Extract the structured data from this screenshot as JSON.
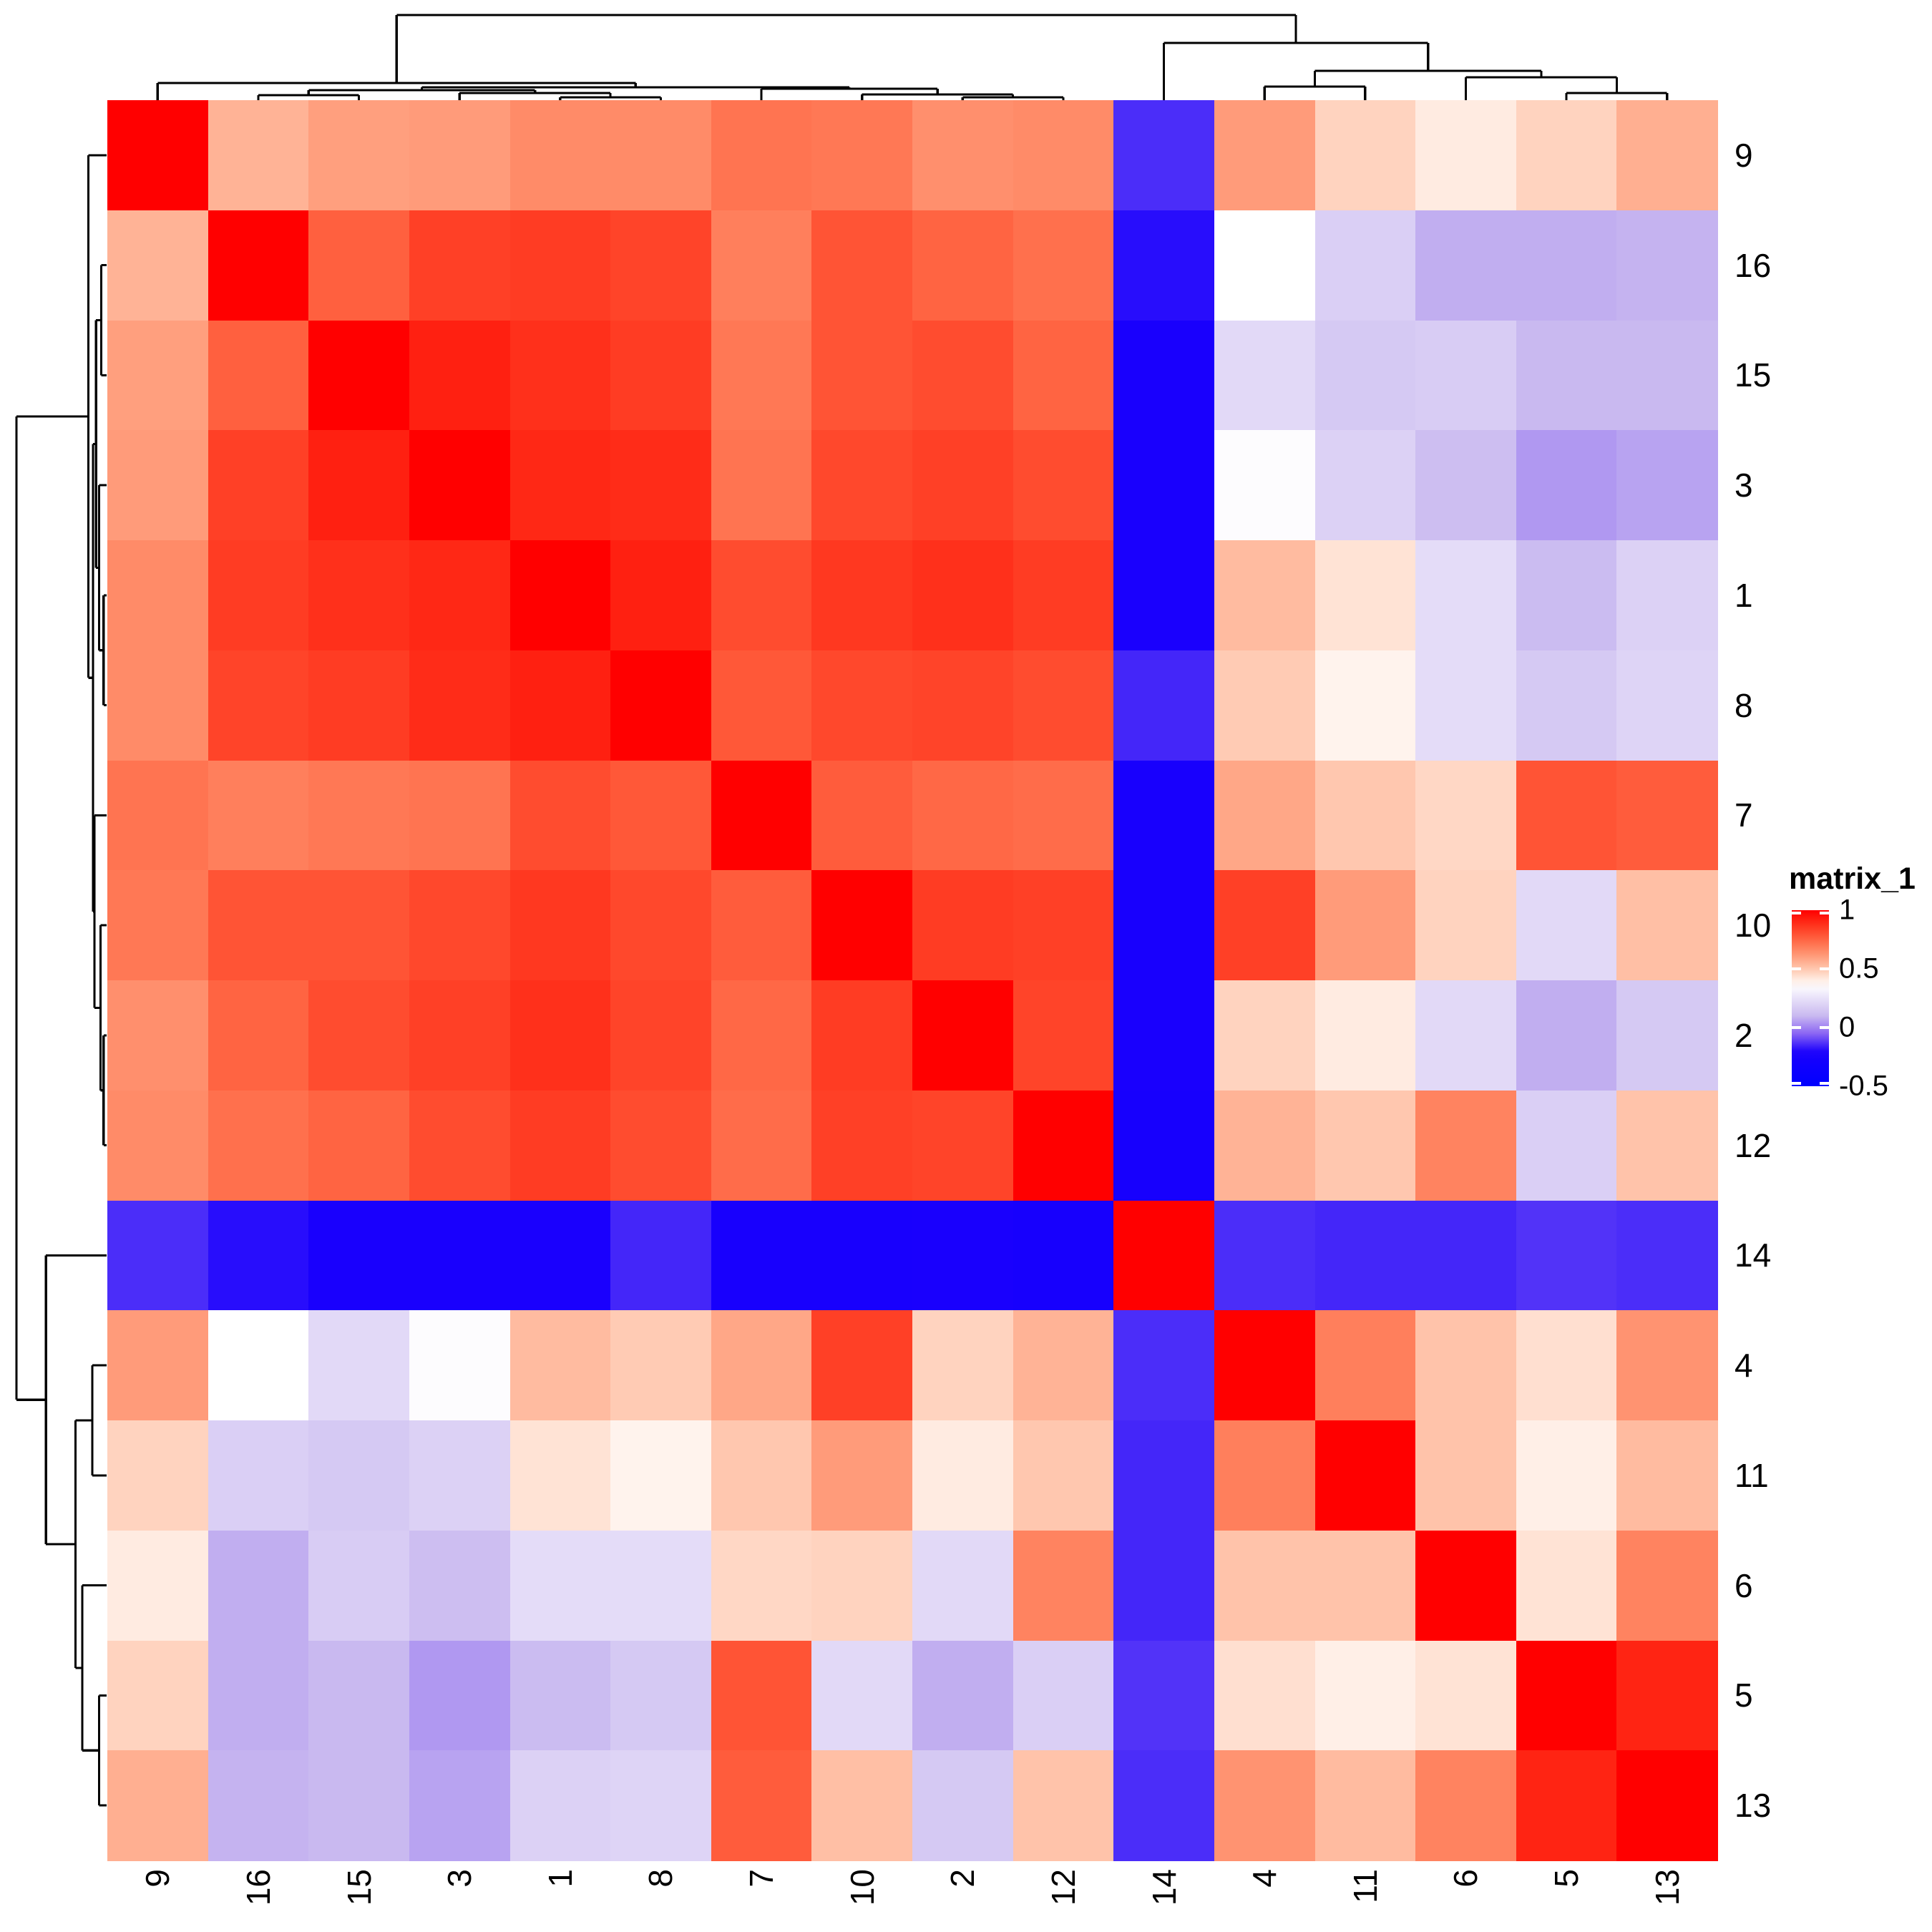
{
  "figure": {
    "background": "#ffffff",
    "text_color": "#000000",
    "dendrogram_color": "#000000"
  },
  "chart_data": {
    "type": "heatmap",
    "title": "matrix_1",
    "subtitle": "",
    "leaf_order": [
      "9",
      "16",
      "15",
      "3",
      "1",
      "8",
      "7",
      "10",
      "2",
      "12",
      "14",
      "4",
      "11",
      "6",
      "5",
      "13"
    ],
    "row_labels": [
      "9",
      "16",
      "15",
      "3",
      "1",
      "8",
      "7",
      "10",
      "2",
      "12",
      "14",
      "4",
      "11",
      "6",
      "5",
      "13"
    ],
    "col_labels": [
      "9",
      "16",
      "15",
      "3",
      "1",
      "8",
      "7",
      "10",
      "2",
      "12",
      "14",
      "4",
      "11",
      "6",
      "5",
      "13"
    ],
    "value_domain": [
      -0.5,
      1
    ],
    "matrix": [
      [
        1.0,
        0.55,
        0.6,
        0.61,
        0.65,
        0.65,
        0.71,
        0.7,
        0.64,
        0.65,
        -0.14,
        0.61,
        0.47,
        0.41,
        0.47,
        0.56
      ],
      [
        0.55,
        1.0,
        0.76,
        0.84,
        0.85,
        0.83,
        0.68,
        0.79,
        0.75,
        0.72,
        -0.19,
        0.36,
        0.18,
        0.08,
        0.08,
        0.09
      ],
      [
        0.6,
        0.76,
        1.0,
        0.92,
        0.88,
        0.85,
        0.7,
        0.79,
        0.81,
        0.75,
        -0.22,
        0.22,
        0.16,
        0.17,
        0.1,
        0.1
      ],
      [
        0.61,
        0.84,
        0.92,
        1.0,
        0.9,
        0.89,
        0.71,
        0.82,
        0.84,
        0.81,
        -0.22,
        0.35,
        0.19,
        0.12,
        0.04,
        0.06
      ],
      [
        0.65,
        0.85,
        0.88,
        0.9,
        1.0,
        0.92,
        0.81,
        0.86,
        0.88,
        0.85,
        -0.21,
        0.53,
        0.43,
        0.23,
        0.11,
        0.19
      ],
      [
        0.65,
        0.83,
        0.85,
        0.89,
        0.92,
        1.0,
        0.78,
        0.82,
        0.83,
        0.81,
        -0.15,
        0.49,
        0.39,
        0.23,
        0.16,
        0.2
      ],
      [
        0.71,
        0.68,
        0.7,
        0.71,
        0.81,
        0.78,
        1.0,
        0.77,
        0.74,
        0.73,
        -0.23,
        0.58,
        0.5,
        0.46,
        0.79,
        0.77
      ],
      [
        0.7,
        0.79,
        0.79,
        0.82,
        0.86,
        0.82,
        0.77,
        1.0,
        0.85,
        0.84,
        -0.23,
        0.84,
        0.61,
        0.47,
        0.22,
        0.52
      ],
      [
        0.64,
        0.75,
        0.81,
        0.84,
        0.88,
        0.83,
        0.74,
        0.85,
        1.0,
        0.83,
        -0.22,
        0.47,
        0.41,
        0.22,
        0.08,
        0.16
      ],
      [
        0.65,
        0.72,
        0.75,
        0.81,
        0.85,
        0.81,
        0.73,
        0.84,
        0.83,
        1.0,
        -0.24,
        0.55,
        0.5,
        0.67,
        0.18,
        0.51
      ],
      [
        -0.14,
        -0.19,
        -0.22,
        -0.22,
        -0.21,
        -0.15,
        -0.23,
        -0.23,
        -0.22,
        -0.24,
        1.0,
        -0.14,
        -0.15,
        -0.15,
        -0.13,
        -0.14
      ],
      [
        0.61,
        0.36,
        0.22,
        0.35,
        0.53,
        0.49,
        0.58,
        0.84,
        0.47,
        0.55,
        -0.14,
        1.0,
        0.68,
        0.51,
        0.44,
        0.63
      ],
      [
        0.47,
        0.18,
        0.16,
        0.19,
        0.43,
        0.39,
        0.5,
        0.61,
        0.41,
        0.5,
        -0.15,
        0.68,
        1.0,
        0.51,
        0.4,
        0.53
      ],
      [
        0.41,
        0.08,
        0.17,
        0.12,
        0.23,
        0.23,
        0.46,
        0.47,
        0.22,
        0.67,
        -0.15,
        0.51,
        0.51,
        1.0,
        0.43,
        0.67
      ],
      [
        0.47,
        0.08,
        0.1,
        0.04,
        0.11,
        0.16,
        0.79,
        0.22,
        0.08,
        0.18,
        -0.13,
        0.44,
        0.4,
        0.43,
        1.0,
        0.91
      ],
      [
        0.56,
        0.09,
        0.1,
        0.06,
        0.19,
        0.2,
        0.77,
        0.52,
        0.16,
        0.51,
        -0.14,
        0.63,
        0.53,
        0.67,
        0.91,
        1.0
      ]
    ],
    "legend": {
      "title": "matrix_1",
      "ticks": [
        {
          "label": "1",
          "value": 1
        },
        {
          "label": "0.5",
          "value": 0.5
        },
        {
          "label": "0",
          "value": 0
        },
        {
          "label": "-0.5",
          "value": -0.5
        }
      ]
    },
    "color_scale": {
      "comment": "piecewise interpolation; red side warm-tinted, blue side passes through violet",
      "white_point": 0.36,
      "red": "#ff0000",
      "blue_side_stops": [
        {
          "v": 0.36,
          "color": "#ffffff"
        },
        {
          "v": 0.1,
          "color": "#c9b9f0"
        },
        {
          "v": -0.05,
          "color": "#8b66f3"
        },
        {
          "v": -0.21,
          "color": "#1a00fd"
        },
        {
          "v": -0.5,
          "color": "#0000ff"
        }
      ]
    },
    "dendrogram": {
      "h": 119,
      "children": [
        {
          "h": 24,
          "children": [
            {
              "leaf": "9"
            },
            {
              "h": 18,
              "children": [
                {
                  "h": 14,
                  "children": [
                    {
                      "h": 7,
                      "children": [
                        {
                          "leaf": "16"
                        },
                        {
                          "leaf": "15"
                        }
                      ]
                    },
                    {
                      "h": 10,
                      "children": [
                        {
                          "leaf": "3"
                        },
                        {
                          "h": 4,
                          "children": [
                            {
                              "leaf": "1"
                            },
                            {
                              "leaf": "8"
                            }
                          ]
                        }
                      ]
                    }
                  ]
                },
                {
                  "h": 16,
                  "children": [
                    {
                      "leaf": "7"
                    },
                    {
                      "h": 8,
                      "children": [
                        {
                          "leaf": "10"
                        },
                        {
                          "h": 4,
                          "children": [
                            {
                              "leaf": "2"
                            },
                            {
                              "leaf": "12"
                            }
                          ]
                        }
                      ]
                    }
                  ]
                }
              ]
            }
          ]
        },
        {
          "h": 80,
          "children": [
            {
              "leaf": "14"
            },
            {
              "h": 41,
              "children": [
                {
                  "h": 19,
                  "children": [
                    {
                      "leaf": "4"
                    },
                    {
                      "leaf": "11"
                    }
                  ]
                },
                {
                  "h": 32,
                  "children": [
                    {
                      "leaf": "6"
                    },
                    {
                      "h": 10,
                      "children": [
                        {
                          "leaf": "5"
                        },
                        {
                          "leaf": "13"
                        }
                      ]
                    }
                  ]
                }
              ]
            }
          ]
        }
      ]
    }
  }
}
